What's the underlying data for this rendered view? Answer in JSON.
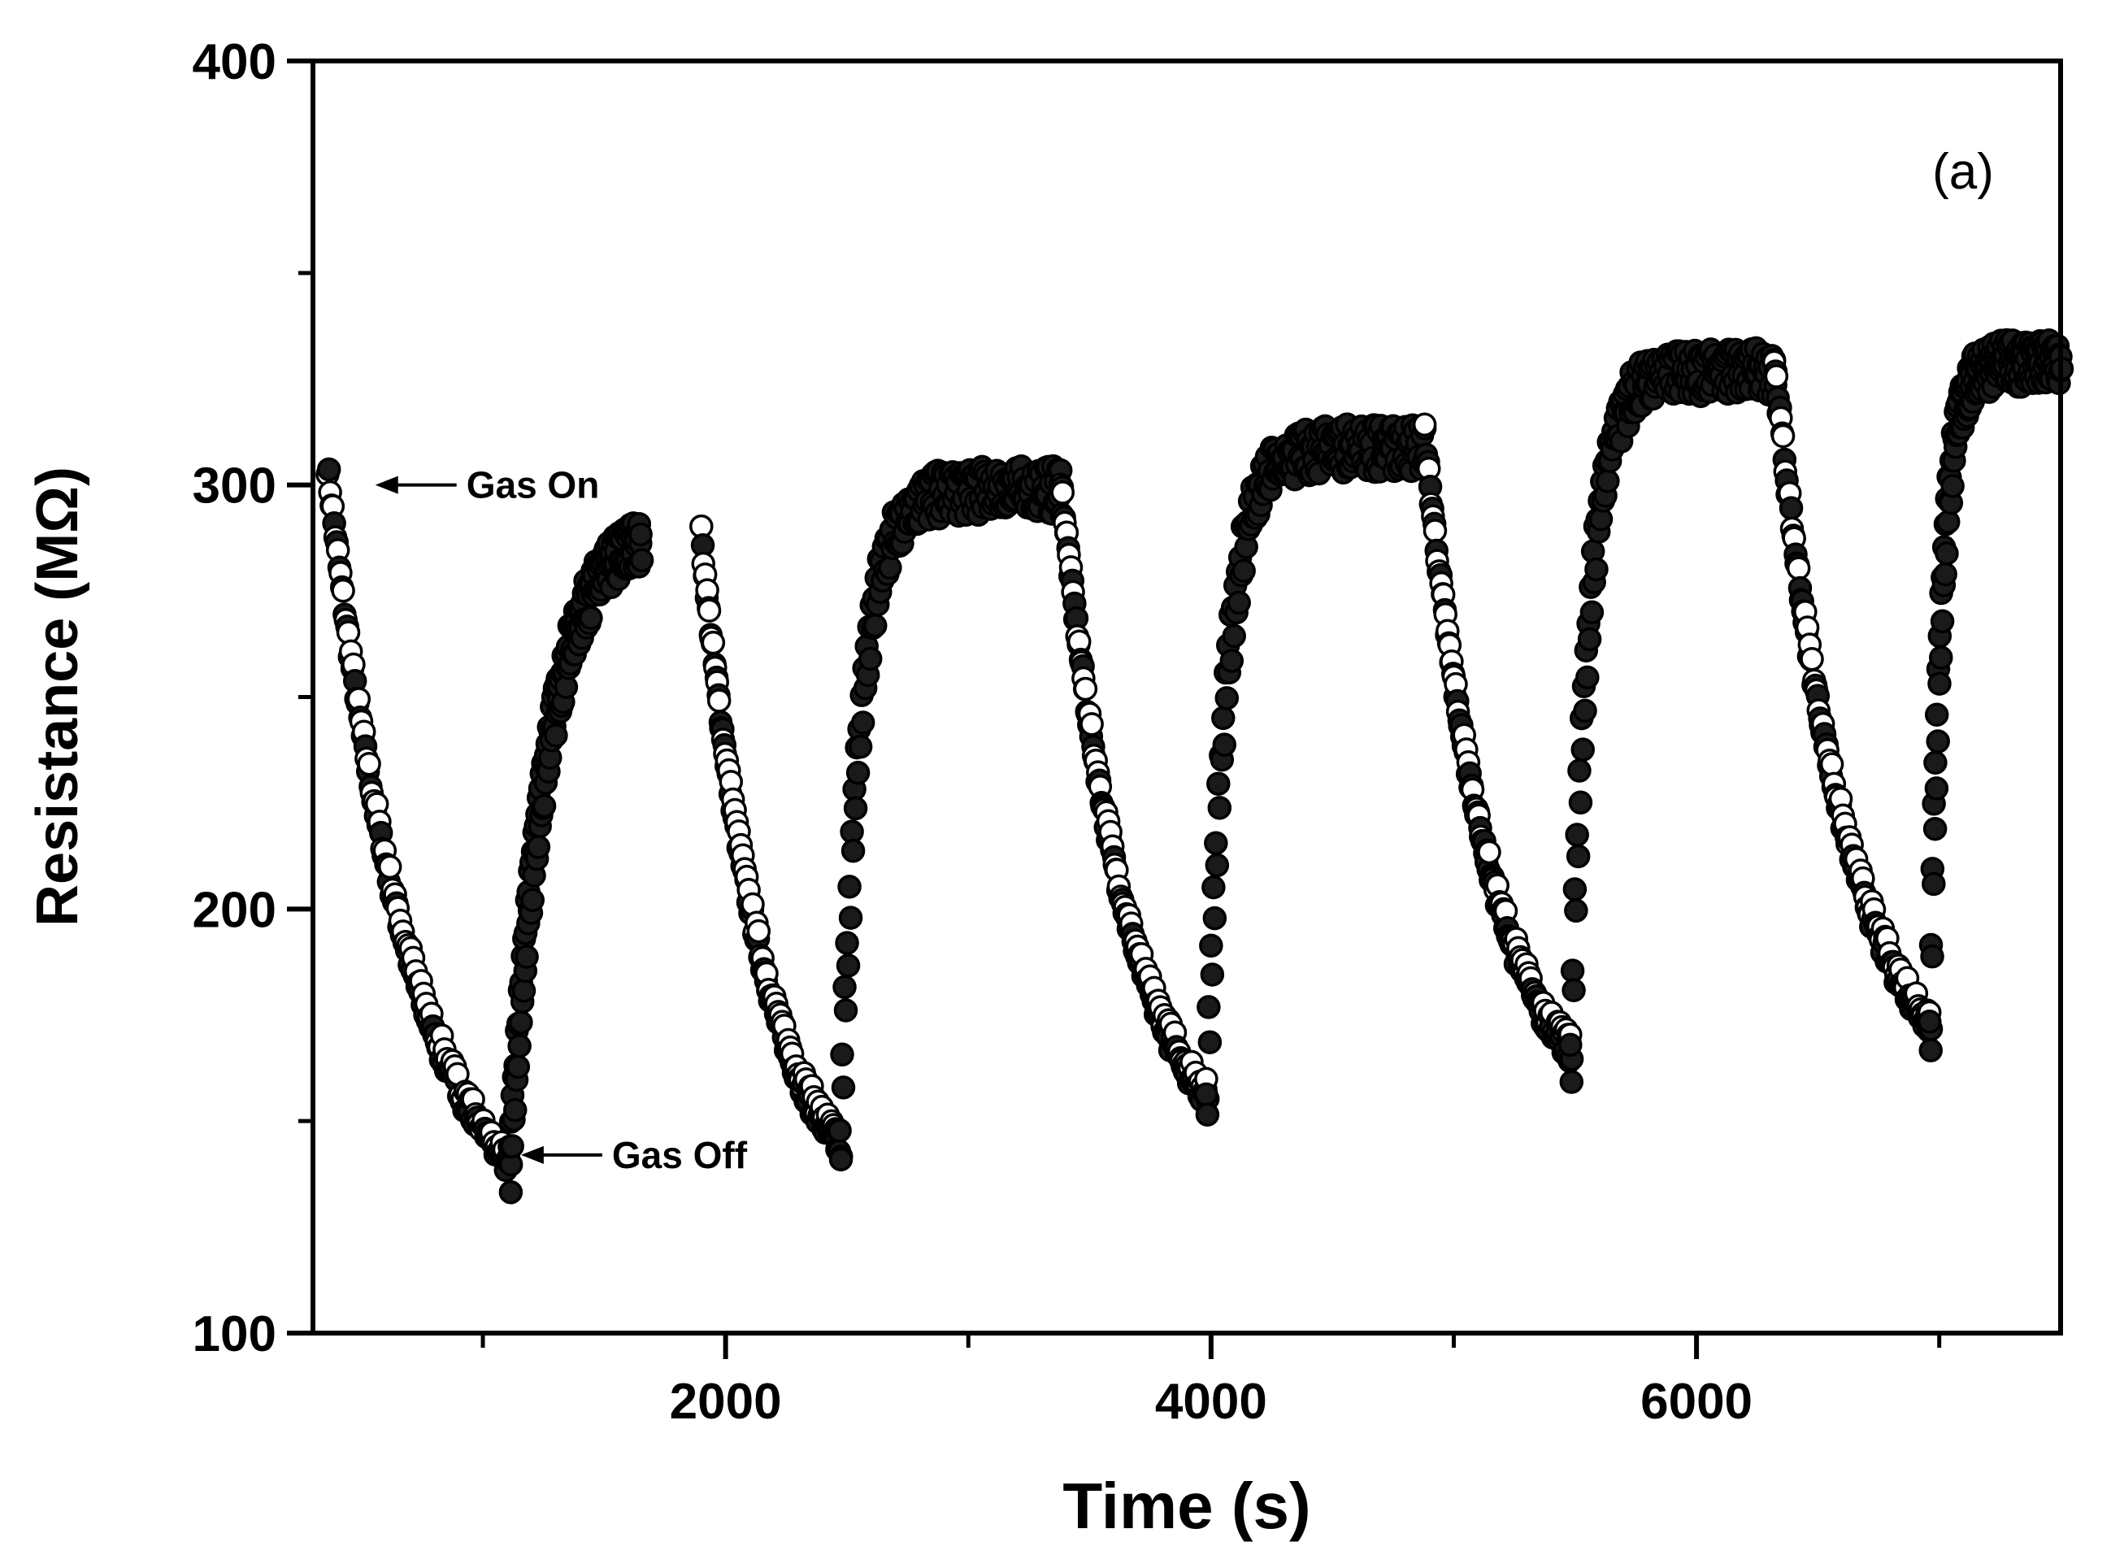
{
  "chart_data": {
    "type": "scatter",
    "title": "",
    "panel_label": "(a)",
    "xlabel": "Time (s)",
    "ylabel": "Resistance (MΩ)",
    "xlim": [
      300,
      7500
    ],
    "ylim": [
      100,
      400
    ],
    "x_ticks": [
      2000,
      4000,
      6000
    ],
    "x_minor_ticks": [
      1000,
      3000,
      5000,
      7000
    ],
    "y_ticks": [
      100,
      200,
      300,
      400
    ],
    "y_minor_ticks": [
      150,
      250,
      350
    ],
    "grid": false,
    "marker": "open-circle",
    "annotations": [
      {
        "text": "Gas On",
        "x": 510,
        "y": 300
      },
      {
        "text": "Gas Off",
        "x": 1110,
        "y": 142
      }
    ],
    "cycles": [
      {
        "on": 360,
        "on_r": 305,
        "off": 1110,
        "min_r": 142,
        "recover_to": 1650,
        "max_r": 290
      },
      {
        "on": 1900,
        "on_r": 288,
        "off": 2470,
        "min_r": 146,
        "recover_to": 3380,
        "max_r": 302
      },
      {
        "on": 3380,
        "on_r": 302,
        "off": 3980,
        "min_r": 158,
        "recover_to": 4880,
        "max_r": 312
      },
      {
        "on": 4880,
        "on_r": 312,
        "off": 5480,
        "min_r": 168,
        "recover_to": 6320,
        "max_r": 330
      },
      {
        "on": 6320,
        "on_r": 330,
        "off": 6960,
        "min_r": 175,
        "recover_to": 7500,
        "max_r": 332
      }
    ]
  }
}
